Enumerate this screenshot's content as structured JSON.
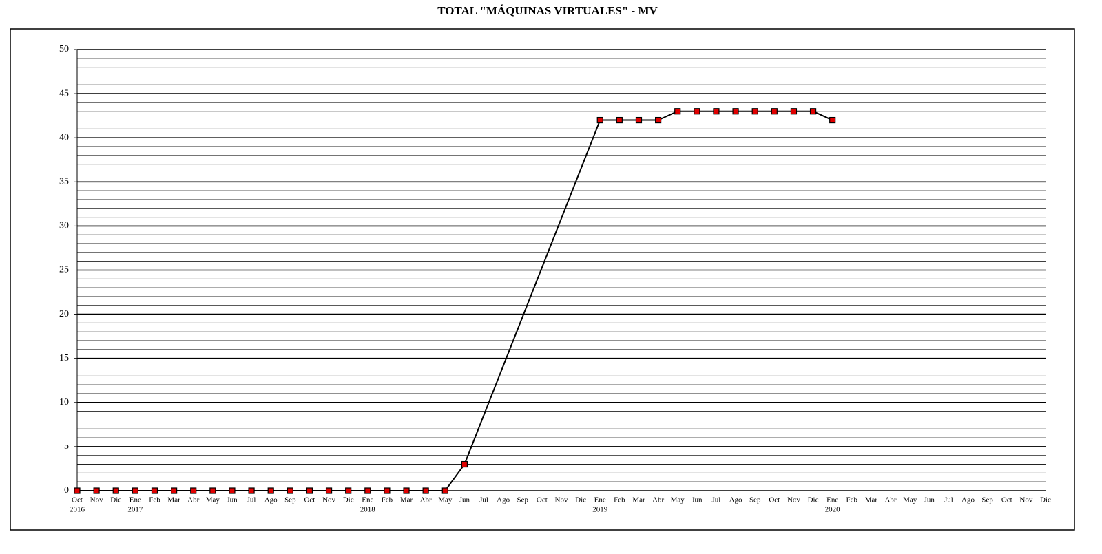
{
  "chart_data": {
    "type": "line",
    "title": "TOTAL \"MÁQUINAS VIRTUALES\" - MV",
    "categories": [
      "Oct",
      "Nov",
      "Dic",
      "Ene",
      "Feb",
      "Mar",
      "Abr",
      "May",
      "Jun",
      "Jul",
      "Ago",
      "Sep",
      "Oct",
      "Nov",
      "Dic",
      "Ene",
      "Feb",
      "Mar",
      "Abr",
      "May",
      "Jun",
      "Jul",
      "Ago",
      "Sep",
      "Oct",
      "Nov",
      "Dic",
      "Ene",
      "Feb",
      "Mar",
      "Abr",
      "May",
      "Jun",
      "Jul",
      "Ago",
      "Sep",
      "Oct",
      "Nov",
      "Dic",
      "Ene",
      "Feb",
      "Mar",
      "Abr",
      "May",
      "Jun",
      "Jul",
      "Ago",
      "Sep",
      "Oct",
      "Nov",
      "Dic"
    ],
    "category_years": [
      "2016",
      null,
      null,
      "2017",
      null,
      null,
      null,
      null,
      null,
      null,
      null,
      null,
      null,
      null,
      null,
      "2018",
      null,
      null,
      null,
      null,
      null,
      null,
      null,
      null,
      null,
      null,
      null,
      "2019",
      null,
      null,
      null,
      null,
      null,
      null,
      null,
      null,
      null,
      null,
      null,
      "2020",
      null,
      null,
      null,
      null,
      null,
      null,
      null,
      null,
      null,
      null,
      null
    ],
    "series": [
      {
        "name": "MV",
        "color": "#000000",
        "marker_color": "#e00000",
        "values": [
          0,
          0,
          0,
          0,
          0,
          0,
          0,
          0,
          0,
          0,
          0,
          0,
          0,
          0,
          0,
          0,
          0,
          0,
          0,
          0,
          3,
          null,
          null,
          null,
          null,
          null,
          null,
          42,
          42,
          42,
          42,
          43,
          43,
          43,
          43,
          43,
          43,
          43,
          43,
          42,
          null,
          null,
          null,
          null,
          null,
          null,
          null,
          null,
          null,
          null,
          null
        ]
      }
    ],
    "connect_gaps": true,
    "ylim": [
      0,
      50
    ],
    "yticks": [
      0,
      5,
      10,
      15,
      20,
      25,
      30,
      35,
      40,
      45,
      50
    ],
    "grid": true,
    "y_minor_interval": 1,
    "legend": false
  }
}
